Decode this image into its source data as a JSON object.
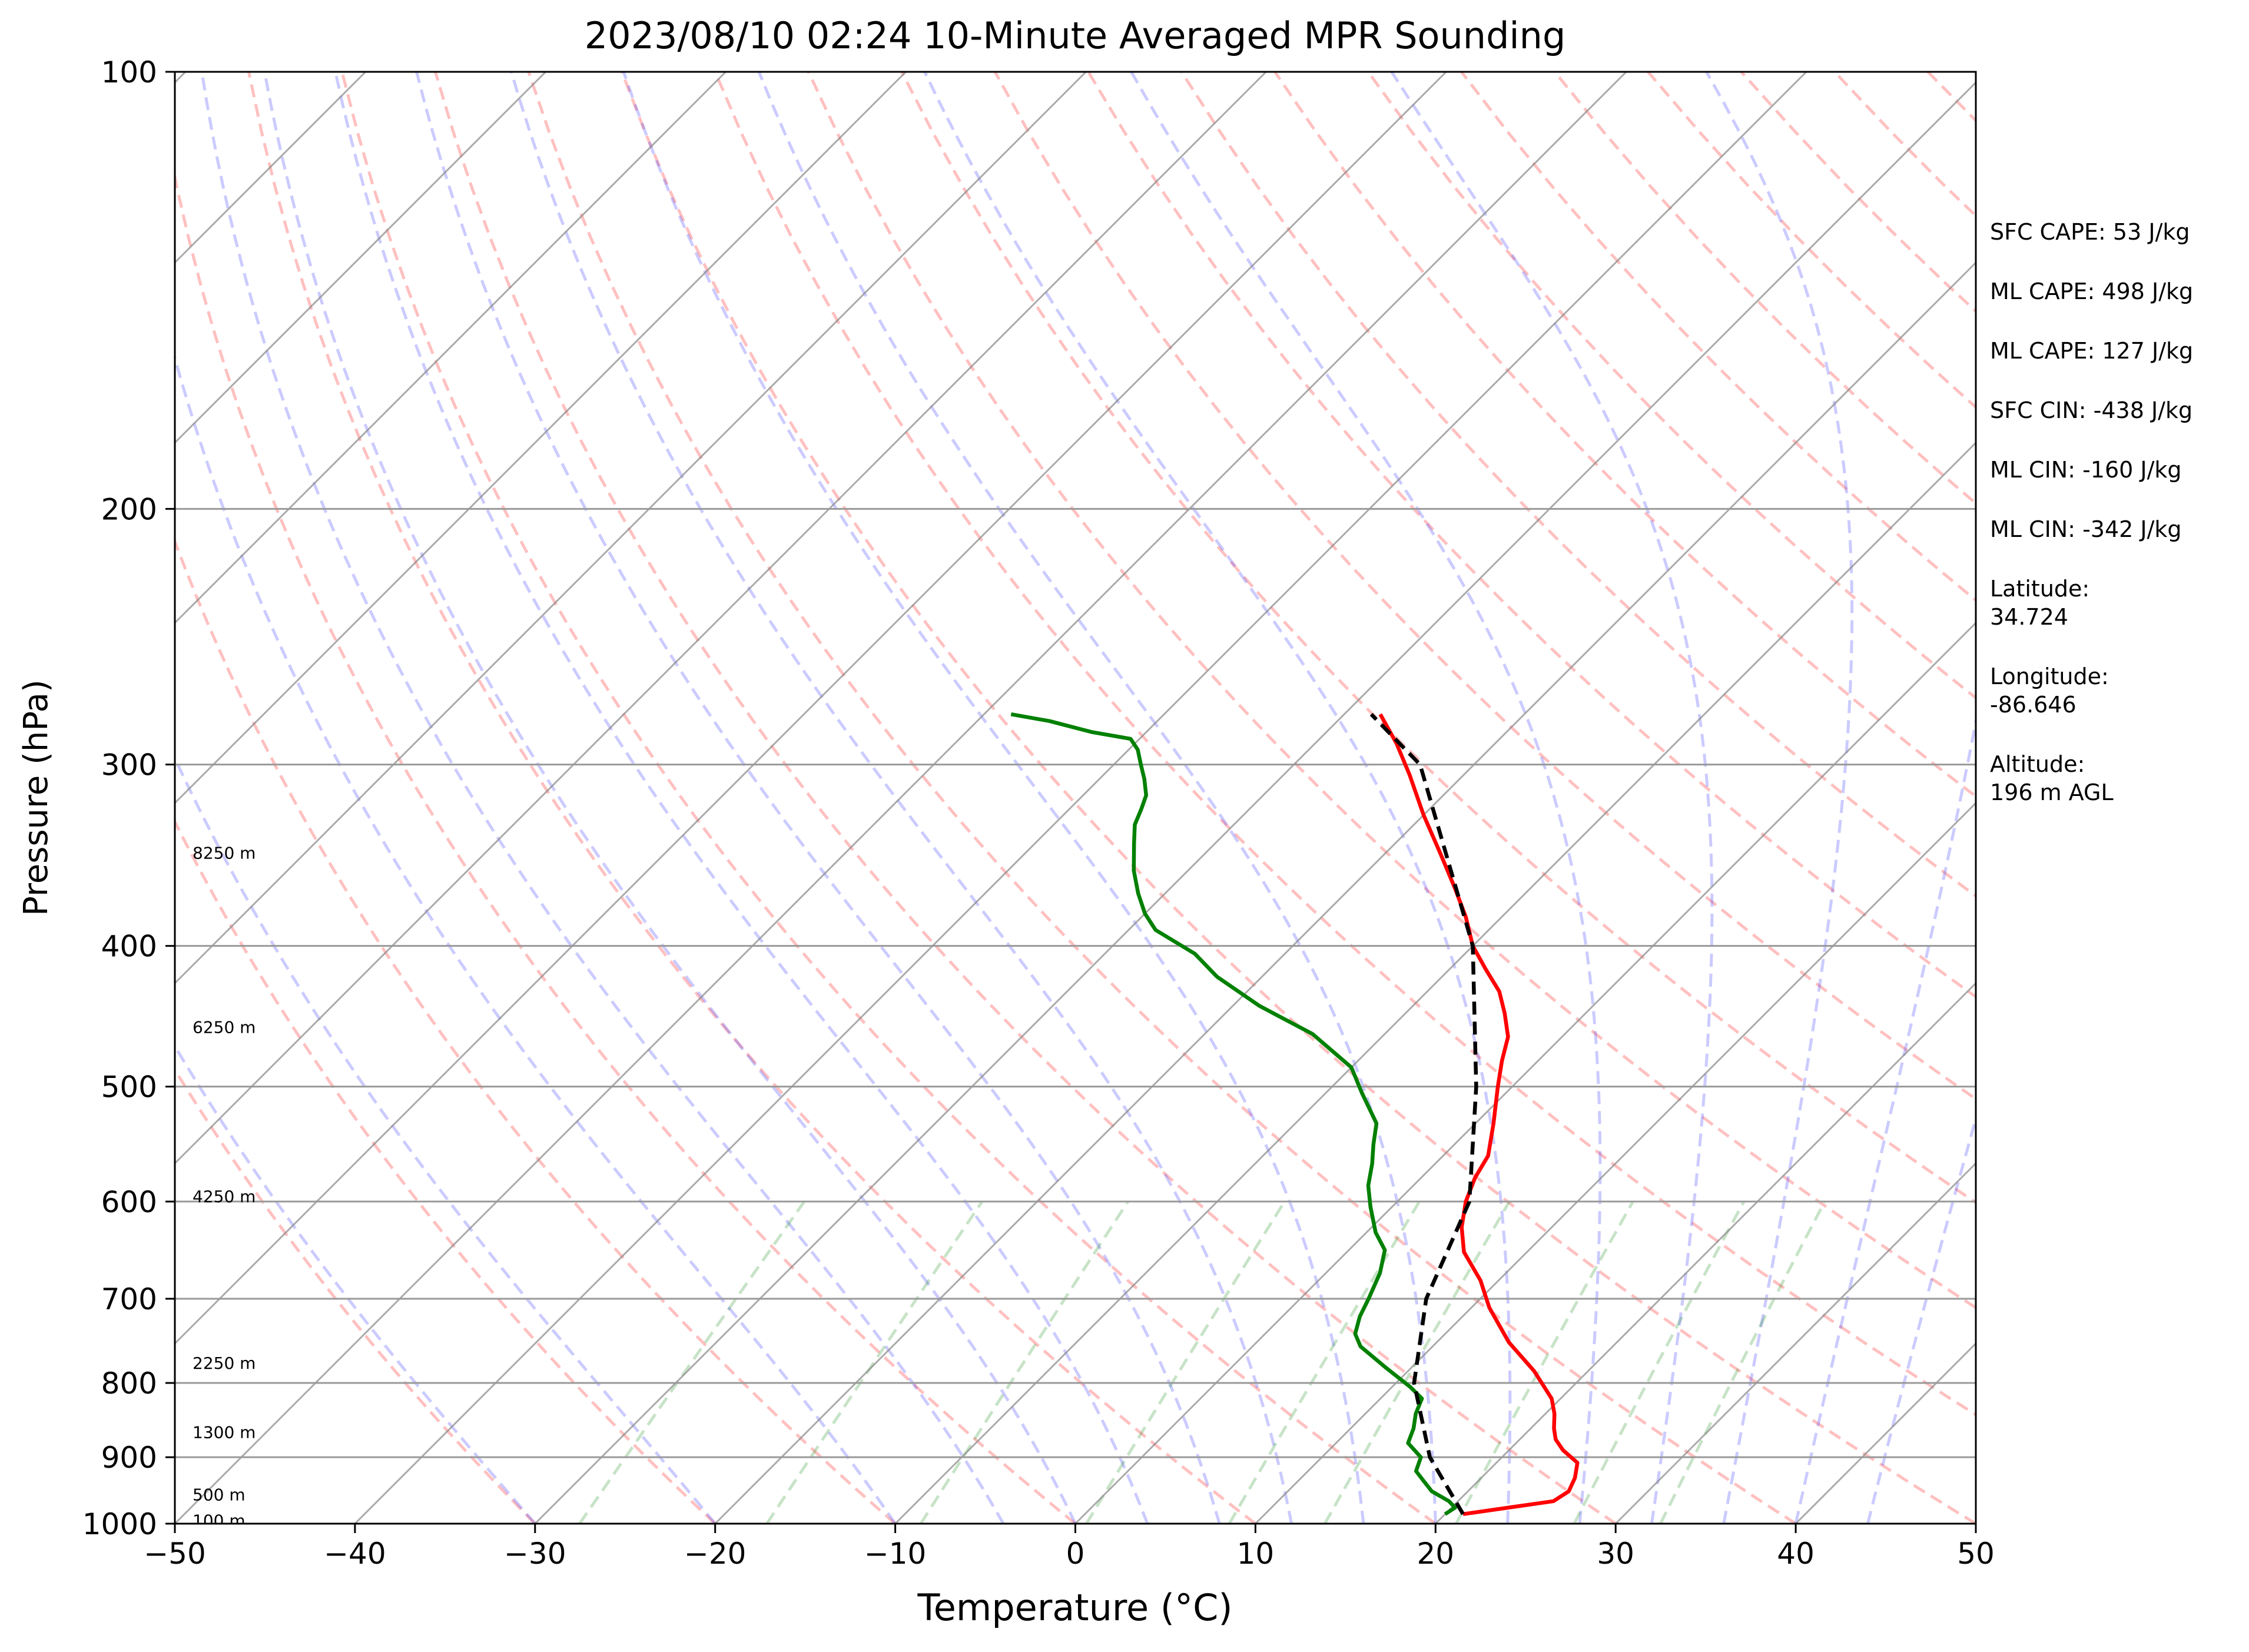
{
  "chart_data": {
    "type": "skew-t",
    "title": "2023/08/10 02:24 10-Minute Averaged MPR Sounding",
    "xlabel": "Temperature (°C)",
    "ylabel": "Pressure (hPa)",
    "xlim": [
      -50,
      50
    ],
    "ylim": [
      1000,
      100
    ],
    "yscale": "log",
    "x_ticks": [
      "−50",
      "−40",
      "−30",
      "−20",
      "−10",
      "0",
      "10",
      "20",
      "30",
      "40",
      "50"
    ],
    "y_ticks": [
      "1000",
      "900",
      "800",
      "700",
      "600",
      "500",
      "400",
      "300",
      "200",
      "100"
    ],
    "grid": true,
    "height_labels": [
      {
        "p": 995,
        "text": "100 m"
      },
      {
        "p": 955,
        "text": "500 m"
      },
      {
        "p": 865,
        "text": "1300 m"
      },
      {
        "p": 775,
        "text": "2250 m"
      },
      {
        "p": 595,
        "text": "4250 m"
      },
      {
        "p": 455,
        "text": "6250 m"
      },
      {
        "p": 345,
        "text": "8250 m"
      }
    ],
    "series": [
      {
        "color": "#ff0000",
        "points": [
          [
            21.0,
            985
          ],
          [
            25.3,
            965
          ],
          [
            25.6,
            950
          ],
          [
            25.2,
            930
          ],
          [
            24.5,
            908
          ],
          [
            23.0,
            890
          ],
          [
            22.0,
            875
          ],
          [
            21.3,
            860
          ],
          [
            20.5,
            840
          ],
          [
            19.5,
            820
          ],
          [
            17.0,
            785
          ],
          [
            14.0,
            750
          ],
          [
            11.0,
            710
          ],
          [
            9.0,
            680
          ],
          [
            6.5,
            650
          ],
          [
            5.0,
            625
          ],
          [
            3.8,
            600
          ],
          [
            3.0,
            578
          ],
          [
            2.5,
            558
          ],
          [
            1.0,
            530
          ],
          [
            -0.8,
            500
          ],
          [
            -2.0,
            480
          ],
          [
            -3.0,
            462
          ],
          [
            -4.5,
            445
          ],
          [
            -6.0,
            430
          ],
          [
            -8.0,
            415
          ],
          [
            -10.0,
            400
          ],
          [
            -12.0,
            382
          ],
          [
            -14.2,
            365
          ],
          [
            -17.0,
            345
          ],
          [
            -20.0,
            325
          ],
          [
            -23.0,
            305
          ],
          [
            -25.5,
            290
          ],
          [
            -28.0,
            277
          ]
        ]
      },
      {
        "color": "#008000",
        "points": [
          [
            20.0,
            985
          ],
          [
            20.2,
            975
          ],
          [
            19.5,
            965
          ],
          [
            18.0,
            950
          ],
          [
            17.0,
            935
          ],
          [
            16.0,
            920
          ],
          [
            15.5,
            900
          ],
          [
            14.0,
            880
          ],
          [
            13.5,
            860
          ],
          [
            12.8,
            840
          ],
          [
            12.3,
            820
          ],
          [
            11.0,
            805
          ],
          [
            8.5,
            780
          ],
          [
            6.0,
            755
          ],
          [
            5.0,
            740
          ],
          [
            4.3,
            720
          ],
          [
            3.8,
            700
          ],
          [
            3.0,
            672
          ],
          [
            2.0,
            648
          ],
          [
            0.5,
            630
          ],
          [
            -1.2,
            605
          ],
          [
            -2.5,
            585
          ],
          [
            -3.5,
            565
          ],
          [
            -4.5,
            548
          ],
          [
            -5.5,
            530
          ],
          [
            -8.0,
            505
          ],
          [
            -10.0,
            485
          ],
          [
            -14.0,
            460
          ],
          [
            -18.5,
            440
          ],
          [
            -22.5,
            420
          ],
          [
            -25.0,
            405
          ],
          [
            -28.5,
            390
          ],
          [
            -30.0,
            380
          ],
          [
            -31.5,
            368
          ],
          [
            -33.0,
            355
          ],
          [
            -34.5,
            340
          ],
          [
            -35.5,
            330
          ],
          [
            -36.0,
            322
          ],
          [
            -36.5,
            315
          ],
          [
            -37.5,
            307
          ],
          [
            -38.5,
            300
          ],
          [
            -39.5,
            293
          ],
          [
            -40.5,
            288
          ],
          [
            -43.0,
            285
          ],
          [
            -46.0,
            280
          ],
          [
            -48.5,
            277
          ]
        ]
      },
      {
        "color": "#000000",
        "dashed": true,
        "points": [
          [
            21.0,
            985
          ],
          [
            16.0,
            900
          ],
          [
            11.0,
            800
          ],
          [
            7.0,
            700
          ],
          [
            4.0,
            600
          ],
          [
            -2.0,
            500
          ],
          [
            -10.0,
            400
          ],
          [
            -23.0,
            300
          ],
          [
            -28.5,
            277
          ]
        ]
      }
    ]
  },
  "side_stats": [
    "SFC CAPE: 53 J/kg",
    "ML CAPE: 498 J/kg",
    "ML CAPE: 127 J/kg",
    "SFC CIN: -438 J/kg",
    "ML CIN: -160 J/kg",
    "ML CIN: -342 J/kg"
  ],
  "location": {
    "latitude_label": "Latitude:",
    "latitude": "34.724",
    "longitude_label": "Longitude:",
    "longitude": "-86.646",
    "altitude_label": "Altitude:",
    "altitude": "196 m AGL"
  }
}
